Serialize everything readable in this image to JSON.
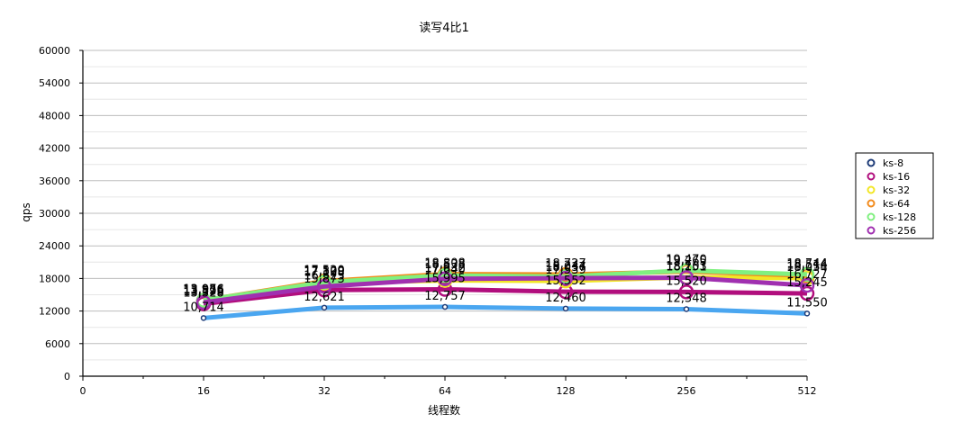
{
  "chart_data": {
    "type": "line",
    "title": "读写4比1",
    "xlabel": "线程数",
    "ylabel": "qps",
    "x_tick_labels": [
      "0",
      "16",
      "32",
      "64",
      "128",
      "256",
      "512"
    ],
    "x": [
      16,
      32,
      64,
      128,
      256,
      512
    ],
    "y_ticks": [
      0,
      6000,
      12000,
      18000,
      24000,
      30000,
      36000,
      42000,
      48000,
      54000,
      60000
    ],
    "ylim": [
      0,
      60000
    ],
    "grid": true,
    "legend_position": "right",
    "series": [
      {
        "name": "ks-8",
        "color": "#4aa6f0",
        "values": [
          10714,
          12621,
          12757,
          12460,
          12348,
          11550
        ]
      },
      {
        "name": "ks-16",
        "color": "#b10e7d",
        "values": [
          13328,
          15873,
          15995,
          15552,
          15520,
          15245
        ]
      },
      {
        "name": "ks-32",
        "color": "#f2e626",
        "values": [
          13826,
          17128,
          17640,
          17539,
          18203,
          18054
        ]
      },
      {
        "name": "ks-64",
        "color": "#f28c1e",
        "values": [
          13956,
          17520,
          18808,
          18727,
          19265,
          18514
        ]
      },
      {
        "name": "ks-128",
        "color": "#80f080",
        "values": [
          13976,
          17309,
          18538,
          18344,
          19470,
          18744
        ]
      },
      {
        "name": "ks-256",
        "color": "#a030b0",
        "values": [
          13596,
          16523,
          17932,
          18037,
          18151,
          16727
        ]
      }
    ],
    "data_labels": [
      [
        "10,714",
        "12,621",
        "12,757",
        "12,460",
        "12,348",
        "11,550"
      ],
      [
        "13,328",
        "15,873",
        "15,995",
        "15,552",
        "15,520",
        "15,245"
      ],
      [
        "13,826",
        "17,128",
        "17,640",
        "17,539",
        "18,203",
        "18,054"
      ],
      [
        "13,956",
        "17,520",
        "18,808",
        "18,727",
        "19,265",
        "18,514"
      ],
      [
        "13,976",
        "17,309",
        "18,538",
        "18,344",
        "19,470",
        "18,744"
      ],
      [
        "13,596",
        "16,523",
        "17,932",
        "18,037",
        "18,151",
        "16,727"
      ]
    ]
  }
}
